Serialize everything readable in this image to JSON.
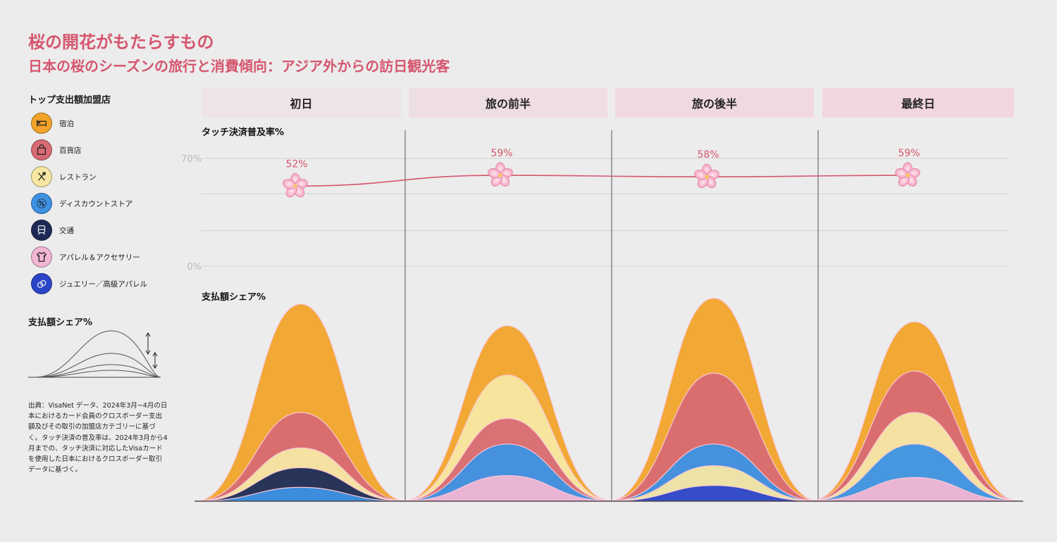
{
  "title": "桜の開花がもたらすもの",
  "subtitle": "日本の桜のシーズンの旅行と消費傾向：アジア外からの訪日観光客",
  "legend": {
    "title": "トップ支出額加盟店",
    "items": [
      {
        "label": "宿泊",
        "color": "#f2a42a",
        "icon": "bed-icon"
      },
      {
        "label": "百貨店",
        "color": "#d86a73",
        "icon": "shopping-bag-icon"
      },
      {
        "label": "レストラン",
        "color": "#f7e7a3",
        "icon": "utensils-icon"
      },
      {
        "label": "ディスカウントストア",
        "color": "#3d92e4",
        "icon": "discount-badge-icon"
      },
      {
        "label": "交通",
        "color": "#1d2a55",
        "icon": "train-icon"
      },
      {
        "label": "アパレル＆アクセサリー",
        "color": "#f3b6d4",
        "icon": "shirt-icon"
      },
      {
        "label": "ジュエリー／高級アパレル",
        "color": "#2b45c8",
        "icon": "rings-icon"
      }
    ]
  },
  "share_legend_title": "支払額シェア%",
  "source_note": "出典：VisaNet データ、2024年3月~4月の日本におけるカード会員のクロスボーダー支出額及びその取引の加盟店カテゴリーに基づく。タッチ決済の普及率は、2024年3月から4月までの、タッチ決済に対応したVisaカードを使用した日本におけるクロスボーダー取引データに基づく。",
  "phases": [
    "初日",
    "旅の前半",
    "旅の後半",
    "最終日"
  ],
  "touch_label": "タッチ決済普及率%",
  "share_label": "支払額シェア%",
  "chart_data": [
    {
      "type": "line",
      "title": "タッチ決済普及率%",
      "categories": [
        "初日",
        "旅の前半",
        "旅の後半",
        "最終日"
      ],
      "values": [
        52,
        59,
        58,
        59
      ],
      "value_labels": [
        "52%",
        "59%",
        "58%",
        "59%"
      ],
      "ylim": [
        0,
        70
      ],
      "y_tick_labels": [
        "70%",
        "0%"
      ],
      "line_color": "#d5566e",
      "marker": "cherry-blossom-icon",
      "grid": true
    },
    {
      "type": "area",
      "title": "支払額シェア%",
      "categories": [
        "初日",
        "旅の前半",
        "旅の後半",
        "最終日"
      ],
      "ylim": [
        0,
        1
      ],
      "series": [
        {
          "name": "宿泊",
          "color": "#f2a42a",
          "values": [
            1.0,
            0.89,
            1.03,
            0.91
          ]
        },
        {
          "name": "百貨店",
          "color": "#d86a73",
          "values": [
            0.45,
            0.42,
            0.65,
            0.66
          ]
        },
        {
          "name": "レストラン",
          "color": "#f7e7a3",
          "values": [
            0.27,
            0.64,
            0.18,
            0.45
          ]
        },
        {
          "name": "ディスカウントストア",
          "color": "#3d92e4",
          "values": [
            0.07,
            0.29,
            0.29,
            0.29
          ]
        },
        {
          "name": "交通",
          "color": "#1d2a55",
          "values": [
            0.17,
            0,
            0,
            0
          ]
        },
        {
          "name": "アパレル＆アクセサリー",
          "color": "#f3b6d4",
          "values": [
            0,
            0.13,
            0,
            0.12
          ]
        },
        {
          "name": "ジュエリー／高級アパレル",
          "color": "#2b45c8",
          "values": [
            0,
            0,
            0.08,
            0
          ]
        }
      ]
    }
  ]
}
